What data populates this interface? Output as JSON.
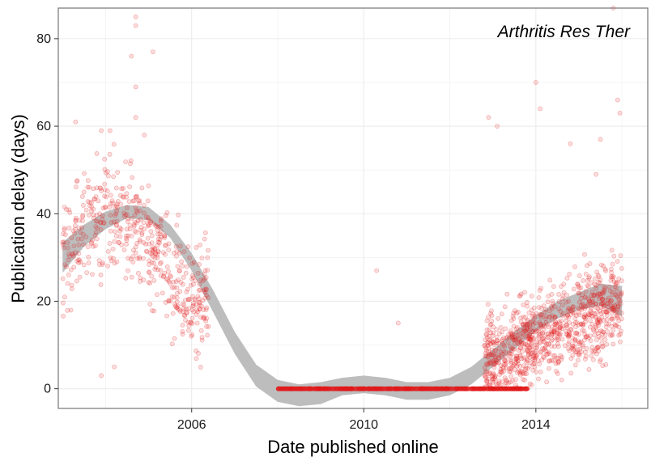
{
  "chart_data": {
    "type": "scatter",
    "title": "",
    "annotation": "Arthritis Res Ther",
    "xlabel": "Date published online",
    "ylabel": "Publication delay (days)",
    "x_ticks": [
      "2006",
      "2010",
      "2014"
    ],
    "y_ticks": [
      "0",
      "20",
      "40",
      "60",
      "80"
    ],
    "xlim": [
      2002.9,
      2016.6
    ],
    "ylim": [
      -4.5,
      87
    ],
    "grid": true,
    "legend": "none",
    "point_color": "#e31a1c",
    "point_alpha": 0.15,
    "smooth_color": "#bdbdbd",
    "smooth_band": {
      "x": [
        2003.0,
        2003.5,
        2004.0,
        2004.5,
        2005.0,
        2005.5,
        2006.0,
        2006.5,
        2007.0,
        2007.5,
        2008.0,
        2008.5,
        2009.0,
        2009.5,
        2010.0,
        2010.5,
        2011.0,
        2011.5,
        2012.0,
        2012.5,
        2013.0,
        2013.5,
        2014.0,
        2014.5,
        2015.0,
        2015.5,
        2016.0
      ],
      "mid": [
        30,
        35,
        38.5,
        40.5,
        40,
        36,
        29,
        20,
        10.5,
        3,
        -0.5,
        -1.5,
        -1,
        0.5,
        1,
        0.5,
        -0.5,
        -0.5,
        0.5,
        3,
        7,
        11,
        15,
        18,
        20,
        21.5,
        20
      ],
      "half": [
        3.5,
        2.5,
        2,
        1.5,
        1.5,
        1.5,
        2,
        2.5,
        2.5,
        2.5,
        2.5,
        2.5,
        2.5,
        2,
        2,
        2,
        2,
        2,
        2,
        2,
        2,
        2,
        1.8,
        2,
        2,
        2.5,
        3.5
      ]
    },
    "scatter_groups": [
      {
        "period": "2003-2006",
        "x_range": [
          2003.0,
          2006.4
        ],
        "y_typical": [
          10,
          60
        ],
        "y_max": 85
      },
      {
        "period": "2008-2013.8",
        "x_range": [
          2008.0,
          2013.8
        ],
        "y_value": 0
      },
      {
        "period": "2012.8-2016",
        "x_range": [
          2012.8,
          2016.0
        ],
        "y_typical": [
          0,
          40
        ],
        "y_max": 87
      }
    ],
    "notable_points": [
      {
        "x": 2004.7,
        "y": 85
      },
      {
        "x": 2004.7,
        "y": 83
      },
      {
        "x": 2004.6,
        "y": 76
      },
      {
        "x": 2005.1,
        "y": 77
      },
      {
        "x": 2004.7,
        "y": 69
      },
      {
        "x": 2004.7,
        "y": 62
      },
      {
        "x": 2003.3,
        "y": 61
      },
      {
        "x": 2003.9,
        "y": 59
      },
      {
        "x": 2004.1,
        "y": 59
      },
      {
        "x": 2004.9,
        "y": 58
      },
      {
        "x": 2014.0,
        "y": 70
      },
      {
        "x": 2014.1,
        "y": 64
      },
      {
        "x": 2012.9,
        "y": 62
      },
      {
        "x": 2013.1,
        "y": 60
      },
      {
        "x": 2014.8,
        "y": 56
      },
      {
        "x": 2015.8,
        "y": 87
      },
      {
        "x": 2015.9,
        "y": 66
      },
      {
        "x": 2015.95,
        "y": 63
      },
      {
        "x": 2015.5,
        "y": 57
      },
      {
        "x": 2015.4,
        "y": 49
      },
      {
        "x": 2010.3,
        "y": 27
      },
      {
        "x": 2010.8,
        "y": 15
      },
      {
        "x": 2003.9,
        "y": 3
      },
      {
        "x": 2004.2,
        "y": 5
      }
    ]
  }
}
